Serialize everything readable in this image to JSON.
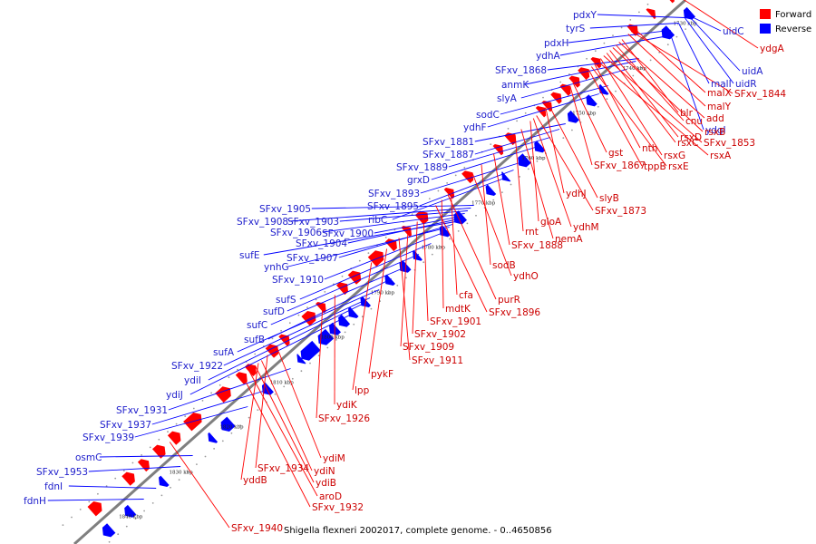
{
  "caption": "Shigella flexneri 2002017, complete genome. - 0..4650856",
  "legend": [
    {
      "label": "Forward",
      "color": "#ff0000"
    },
    {
      "label": "Reverse",
      "color": "#0000ff"
    }
  ],
  "colors": {
    "forward": "#ff0000",
    "reverse": "#0000ff",
    "backbone": "#7f7f7f",
    "forward_label": "#cc0000",
    "reverse_label": "#2020cc"
  },
  "ticks": [
    "1730 kbp",
    "1740 kbp",
    "1750 kbp",
    "1760 kbp",
    "1770 kbp",
    "1780 kbp",
    "1790 kbp",
    "1800 kbp",
    "1810 kbp",
    "1820 kbp",
    "1830 kbp",
    "1840 kbp"
  ],
  "reverse_labels": [
    "pdxY",
    "tyrS",
    "pdxH",
    "ydhA",
    "SFxv_1868",
    "anmK",
    "slyA",
    "sodC",
    "ydhF",
    "SFxv_1881",
    "SFxv_1887",
    "SFxv_1889",
    "grxD",
    "SFxv_1893",
    "SFxv_1895",
    "ribC",
    "SFxv_1905",
    "SFxv_1908",
    "SFxv_1903",
    "SFxv_1906",
    "SFxv_1900",
    "SFxv_1904",
    "sufE",
    "SFxv_1907",
    "ynhG",
    "SFxv_1910",
    "sufS",
    "sufD",
    "sufC",
    "sufB",
    "sufA",
    "SFxv_1922",
    "ydiI",
    "ydiJ",
    "SFxv_1931",
    "SFxv_1937",
    "SFxv_1939",
    "osmC",
    "SFxv_1953",
    "fdnI",
    "fdnH",
    "uidC",
    "uidA",
    "uidR",
    "malI",
    "ydgI"
  ],
  "forward_labels": [
    "ydgA",
    "malX",
    "SFxv_1844",
    "malY",
    "blr",
    "add",
    "cnu",
    "rsxB",
    "rsxD",
    "rsxC",
    "SFxv_1853",
    "rsxG",
    "rsxA",
    "nth",
    "rsxE",
    "tppB",
    "gst",
    "SFxv_1867",
    "slyB",
    "ydhJ",
    "SFxv_1873",
    "ydhM",
    "gloA",
    "nemA",
    "rnt",
    "SFxv_1888",
    "sodB",
    "ydhO",
    "cfa",
    "purR",
    "mdtK",
    "SFxv_1896",
    "SFxv_1901",
    "SFxv_1902",
    "SFxv_1909",
    "SFxv_1911",
    "pykF",
    "lpp",
    "ydiK",
    "SFxv_1926",
    "ydiM",
    "SFxv_1934",
    "ydiN",
    "yddB",
    "ydiB",
    "aroD",
    "SFxv_1932",
    "SFxv_1940"
  ]
}
